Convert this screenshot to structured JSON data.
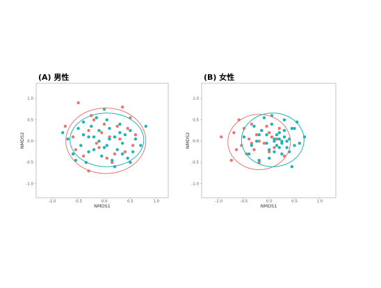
{
  "chart_data": [
    {
      "type": "scatter",
      "title": "(A) 男性",
      "xlabel": "NMDS1",
      "ylabel": "NMDS2",
      "xlim": [
        -1.31,
        1.23
      ],
      "ylim": [
        -1.33,
        1.36
      ],
      "xticks": [
        {
          "value": -1,
          "label": "-1.0"
        },
        {
          "value": -0.5,
          "label": "-0.5"
        },
        {
          "value": 0,
          "label": "0.0"
        },
        {
          "value": 0.5,
          "label": "0.5"
        },
        {
          "value": 1,
          "label": "1.0"
        }
      ],
      "yticks": [
        {
          "value": -1,
          "label": "-1.0"
        },
        {
          "value": -0.5,
          "label": "-0.5"
        },
        {
          "value": 0,
          "label": "0.0"
        },
        {
          "value": 0.5,
          "label": "0.5"
        },
        {
          "value": 1,
          "label": "1.0"
        }
      ],
      "series": [
        {
          "color": "#e8756d",
          "x": [
            -0.75,
            -0.5,
            -0.55,
            -0.3,
            -0.2,
            -0.05,
            0.1,
            0.2,
            0.35,
            0.45,
            0.55,
            -0.6,
            -0.4,
            -0.1,
            0.0,
            0.15,
            0.3,
            0.5,
            -0.3,
            -0.15,
            0.05,
            0.25,
            0.4,
            -0.25,
            0.6
          ],
          "y": [
            0.35,
            0.9,
            -0.2,
            -0.7,
            0.5,
            0.2,
            0.1,
            -0.3,
            0.8,
            0.3,
            -0.1,
            0.1,
            -0.35,
            -0.15,
            0.4,
            -0.5,
            0.05,
            0.55,
            0.25,
            -0.05,
            -0.4,
            0.35,
            -0.25,
            0.6,
            0.15
          ],
          "ellipse": {
            "cx": 0.03,
            "cy": 0.01,
            "rx": 0.77,
            "ry": 0.77
          }
        },
        {
          "color": "#1cb3b8",
          "x": [
            -0.8,
            -0.7,
            -0.6,
            -0.5,
            -0.45,
            -0.4,
            -0.35,
            -0.3,
            -0.25,
            -0.2,
            -0.15,
            -0.1,
            -0.05,
            0,
            0.05,
            0.1,
            0.15,
            0.2,
            0.25,
            0.3,
            0.35,
            0.4,
            0.45,
            0.5,
            0.55,
            0.6,
            0.7,
            0.8,
            -0.55,
            -0.3,
            -0.1,
            0.05,
            0.2,
            0.35,
            -0.2,
            0.0,
            0.1,
            0.3,
            -0.4,
            0.5
          ],
          "y": [
            0.2,
            0.05,
            -0.3,
            0.3,
            -0.1,
            0.45,
            -0.5,
            0.1,
            0.35,
            -0.2,
            0.55,
            0.0,
            -0.35,
            0.75,
            -0.1,
            0.3,
            -0.45,
            0.1,
            -0.2,
            0.4,
            -0.05,
            0.15,
            -0.4,
            0.25,
            -0.25,
            0.05,
            -0.1,
            0.35,
            -0.45,
            -0.25,
            0.25,
            0.5,
            -0.6,
            -0.3,
            0.1,
            -0.15,
            0.05,
            0.2,
            0.15,
            -0.5
          ],
          "ellipse": {
            "cx": 0.05,
            "cy": 0.03,
            "rx": 0.71,
            "ry": 0.63
          }
        }
      ]
    },
    {
      "type": "scatter",
      "title": "(B) 女性",
      "xlabel": "NMDS1",
      "ylabel": "NMDS2",
      "xlim": [
        -1.34,
        1.32
      ],
      "ylim": [
        -1.33,
        1.36
      ],
      "xticks": [
        {
          "value": -1,
          "label": "-1.0"
        },
        {
          "value": -0.5,
          "label": "-0.5"
        },
        {
          "value": 0,
          "label": "0.0"
        },
        {
          "value": 0.5,
          "label": "0.5"
        },
        {
          "value": 1,
          "label": "1.0"
        }
      ],
      "yticks": [
        {
          "value": -1,
          "label": "-1.0"
        },
        {
          "value": -0.5,
          "label": "-0.5"
        },
        {
          "value": 0,
          "label": "0.0"
        },
        {
          "value": 0.5,
          "label": "0.5"
        },
        {
          "value": 1,
          "label": "1.0"
        }
      ],
      "series": [
        {
          "color": "#e8756d",
          "x": [
            -0.95,
            -0.75,
            -0.7,
            -0.6,
            -0.55,
            -0.5,
            -0.45,
            -0.4,
            -0.35,
            -0.3,
            -0.25,
            -0.2,
            -0.15,
            -0.1,
            -0.05,
            0,
            0.05,
            0.1,
            0.2,
            0.3,
            -0.65,
            -0.35,
            -0.2,
            0.0,
            0.15
          ],
          "y": [
            0.1,
            -0.45,
            0.2,
            0.5,
            -0.1,
            0.3,
            -0.3,
            0.05,
            0.4,
            -0.2,
            0.15,
            -0.5,
            0.25,
            -0.05,
            0.35,
            -0.25,
            0.1,
            -0.15,
            0.3,
            -0.35,
            -0.2,
            -0.05,
            0.0,
            0.2,
            0.05
          ],
          "ellipse": {
            "cx": -0.2,
            "cy": -0.02,
            "rx": 0.62,
            "ry": 0.65
          }
        },
        {
          "color": "#1cb3b8",
          "x": [
            -0.5,
            -0.4,
            -0.3,
            -0.25,
            -0.2,
            -0.1,
            -0.05,
            0,
            0.05,
            0.1,
            0.15,
            0.2,
            0.25,
            0.3,
            0.35,
            0.4,
            0.45,
            0.5,
            0.55,
            0.6,
            0.7,
            -0.35,
            -0.15,
            0.0,
            0.1,
            0.2,
            0.3,
            0.4,
            0.5,
            -0.05,
            0.15,
            0.25,
            0.35,
            0.05,
            0.2,
            0.25,
            -0.2,
            0.45,
            0.3,
            0.1
          ],
          "y": [
            0.1,
            -0.3,
            0.35,
            0.0,
            -0.45,
            0.55,
            0.15,
            -0.2,
            0.4,
            0.05,
            -0.1,
            0.2,
            -0.3,
            0.1,
            0.0,
            -0.25,
            0.3,
            -0.1,
            0.45,
            -0.05,
            0.1,
            -0.1,
            0.25,
            -0.4,
            0.0,
            -0.15,
            0.25,
            0.05,
            0.3,
            -0.05,
            0.15,
            0.0,
            -0.15,
            0.6,
            0.05,
            -0.05,
            0.15,
            -0.6,
            0.5,
            -0.25
          ],
          "ellipse": {
            "cx": 0.07,
            "cy": 0.03,
            "rx": 0.62,
            "ry": 0.63
          }
        }
      ]
    }
  ]
}
